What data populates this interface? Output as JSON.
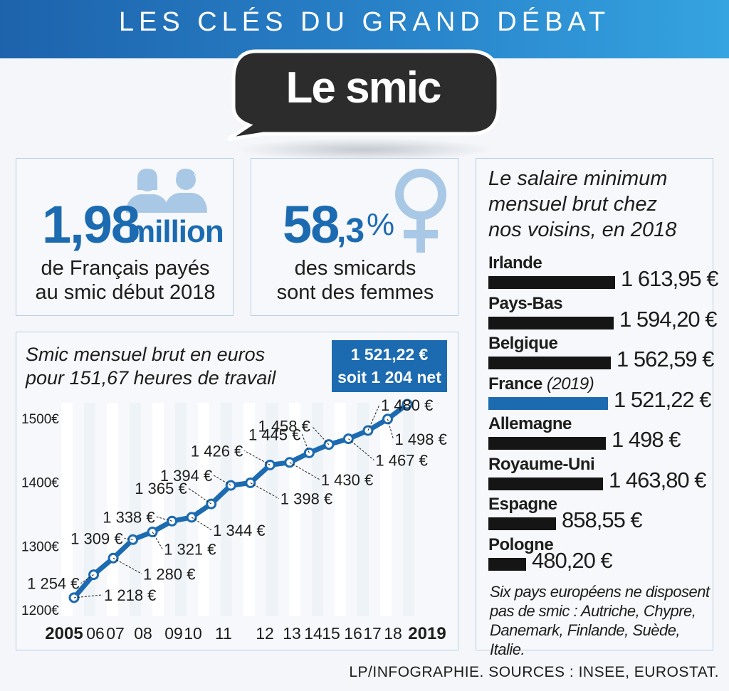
{
  "header": {
    "banner": "LES CLÉS DU GRAND DÉBAT",
    "title": "Le smic"
  },
  "stats": {
    "count": {
      "number": "1,98",
      "unit": "million",
      "caption_line1": "de Français payés",
      "caption_line2": "au smic début 2018"
    },
    "women": {
      "number": "58",
      "decimal": ",3",
      "unit": "%",
      "caption_line1": "des smicards",
      "caption_line2": "sont des femmes"
    }
  },
  "colors": {
    "accent": "#1c6bb1",
    "bar": "#151515",
    "icon": "#a9c8e6"
  },
  "icons": [
    "people-icon",
    "female-symbol-icon"
  ],
  "chart_data": [
    {
      "type": "line",
      "title": "Smic mensuel brut en euros pour 151,67 heures de travail",
      "title_line1": "Smic mensuel brut en euros",
      "title_line2": "pour 151,67 heures de travail",
      "callout_line1": "1 521,22 €",
      "callout_line2": "soit 1 204 net",
      "x": [
        "2005",
        "06",
        "07",
        "08",
        "09",
        "10",
        "11",
        "12",
        "13",
        "14",
        "15",
        "16",
        "17",
        "18",
        "2019"
      ],
      "bold_ticks": [
        "2005",
        "2019"
      ],
      "y_ticks": [
        {
          "value": 1200,
          "label": "1200€"
        },
        {
          "value": 1300,
          "label": "1300€"
        },
        {
          "value": 1400,
          "label": "1400€"
        },
        {
          "value": 1500,
          "label": "1500€"
        }
      ],
      "ylim": [
        1200,
        1521.22
      ],
      "series": [
        {
          "points": [
            {
              "value": 1218,
              "label": "1 218 €"
            },
            {
              "value": 1254,
              "label": "1 254 €"
            },
            {
              "value": 1280,
              "label": "1 280 €"
            },
            {
              "value": 1309,
              "label": "1 309 €"
            },
            {
              "value": 1321,
              "label": "1 321 €"
            },
            {
              "value": 1338,
              "label": "1 338 €"
            },
            {
              "value": 1344,
              "label": "1 344 €"
            },
            {
              "value": 1365,
              "label": "1 365 €"
            },
            {
              "value": 1394,
              "label": "1 394 €"
            },
            {
              "value": 1398,
              "label": "1 398 €"
            },
            {
              "value": 1426,
              "label": "1 426 €"
            },
            {
              "value": 1430,
              "label": "1 430 €"
            },
            {
              "value": 1445,
              "label": "1 445 €"
            },
            {
              "value": 1458,
              "label": "1 458 €"
            },
            {
              "value": 1467,
              "label": "1 467 €"
            },
            {
              "value": 1480,
              "label": "1 480 €"
            },
            {
              "value": 1498,
              "label": "1 498 €"
            },
            {
              "value": 1521.22,
              "label": ""
            }
          ]
        }
      ]
    },
    {
      "type": "bar",
      "orientation": "horizontal",
      "title": "Le salaire minimum mensuel brut chez nos voisins, en 2018",
      "title_line1": "Le salaire minimum",
      "title_line2": "mensuel brut chez",
      "title_line3": "nos voisins, en 2018",
      "bars": [
        {
          "country": "Irlande",
          "year": "",
          "value": 1613.95,
          "label": "1 613,95 €",
          "highlight": false
        },
        {
          "country": "Pays-Bas",
          "year": "",
          "value": 1594.2,
          "label": "1 594,20 €",
          "highlight": false
        },
        {
          "country": "Belgique",
          "year": "",
          "value": 1562.59,
          "label": "1 562,59 €",
          "highlight": false
        },
        {
          "country": "France",
          "year": "(2019)",
          "value": 1521.22,
          "label": "1 521,22 €",
          "highlight": true
        },
        {
          "country": "Allemagne",
          "year": "",
          "value": 1498,
          "label": "1 498 €",
          "highlight": false
        },
        {
          "country": "Royaume-Uni",
          "year": "",
          "value": 1463.8,
          "label": "1 463,80 €",
          "highlight": false
        },
        {
          "country": "Espagne",
          "year": "",
          "value": 858.55,
          "label": "858,55 €",
          "highlight": false
        },
        {
          "country": "Pologne",
          "year": "",
          "value": 480.2,
          "label": "480,20 €",
          "highlight": false
        }
      ],
      "note_line1": "Six pays européens ne disposent",
      "note_line2": "pas de smic : Autriche, Chypre,",
      "note_line3": "Danemark, Finlande, Suède, Italie."
    }
  ],
  "footer": {
    "source": "LP/INFOGRAPHIE.  SOURCES : INSEE, EUROSTAT."
  }
}
